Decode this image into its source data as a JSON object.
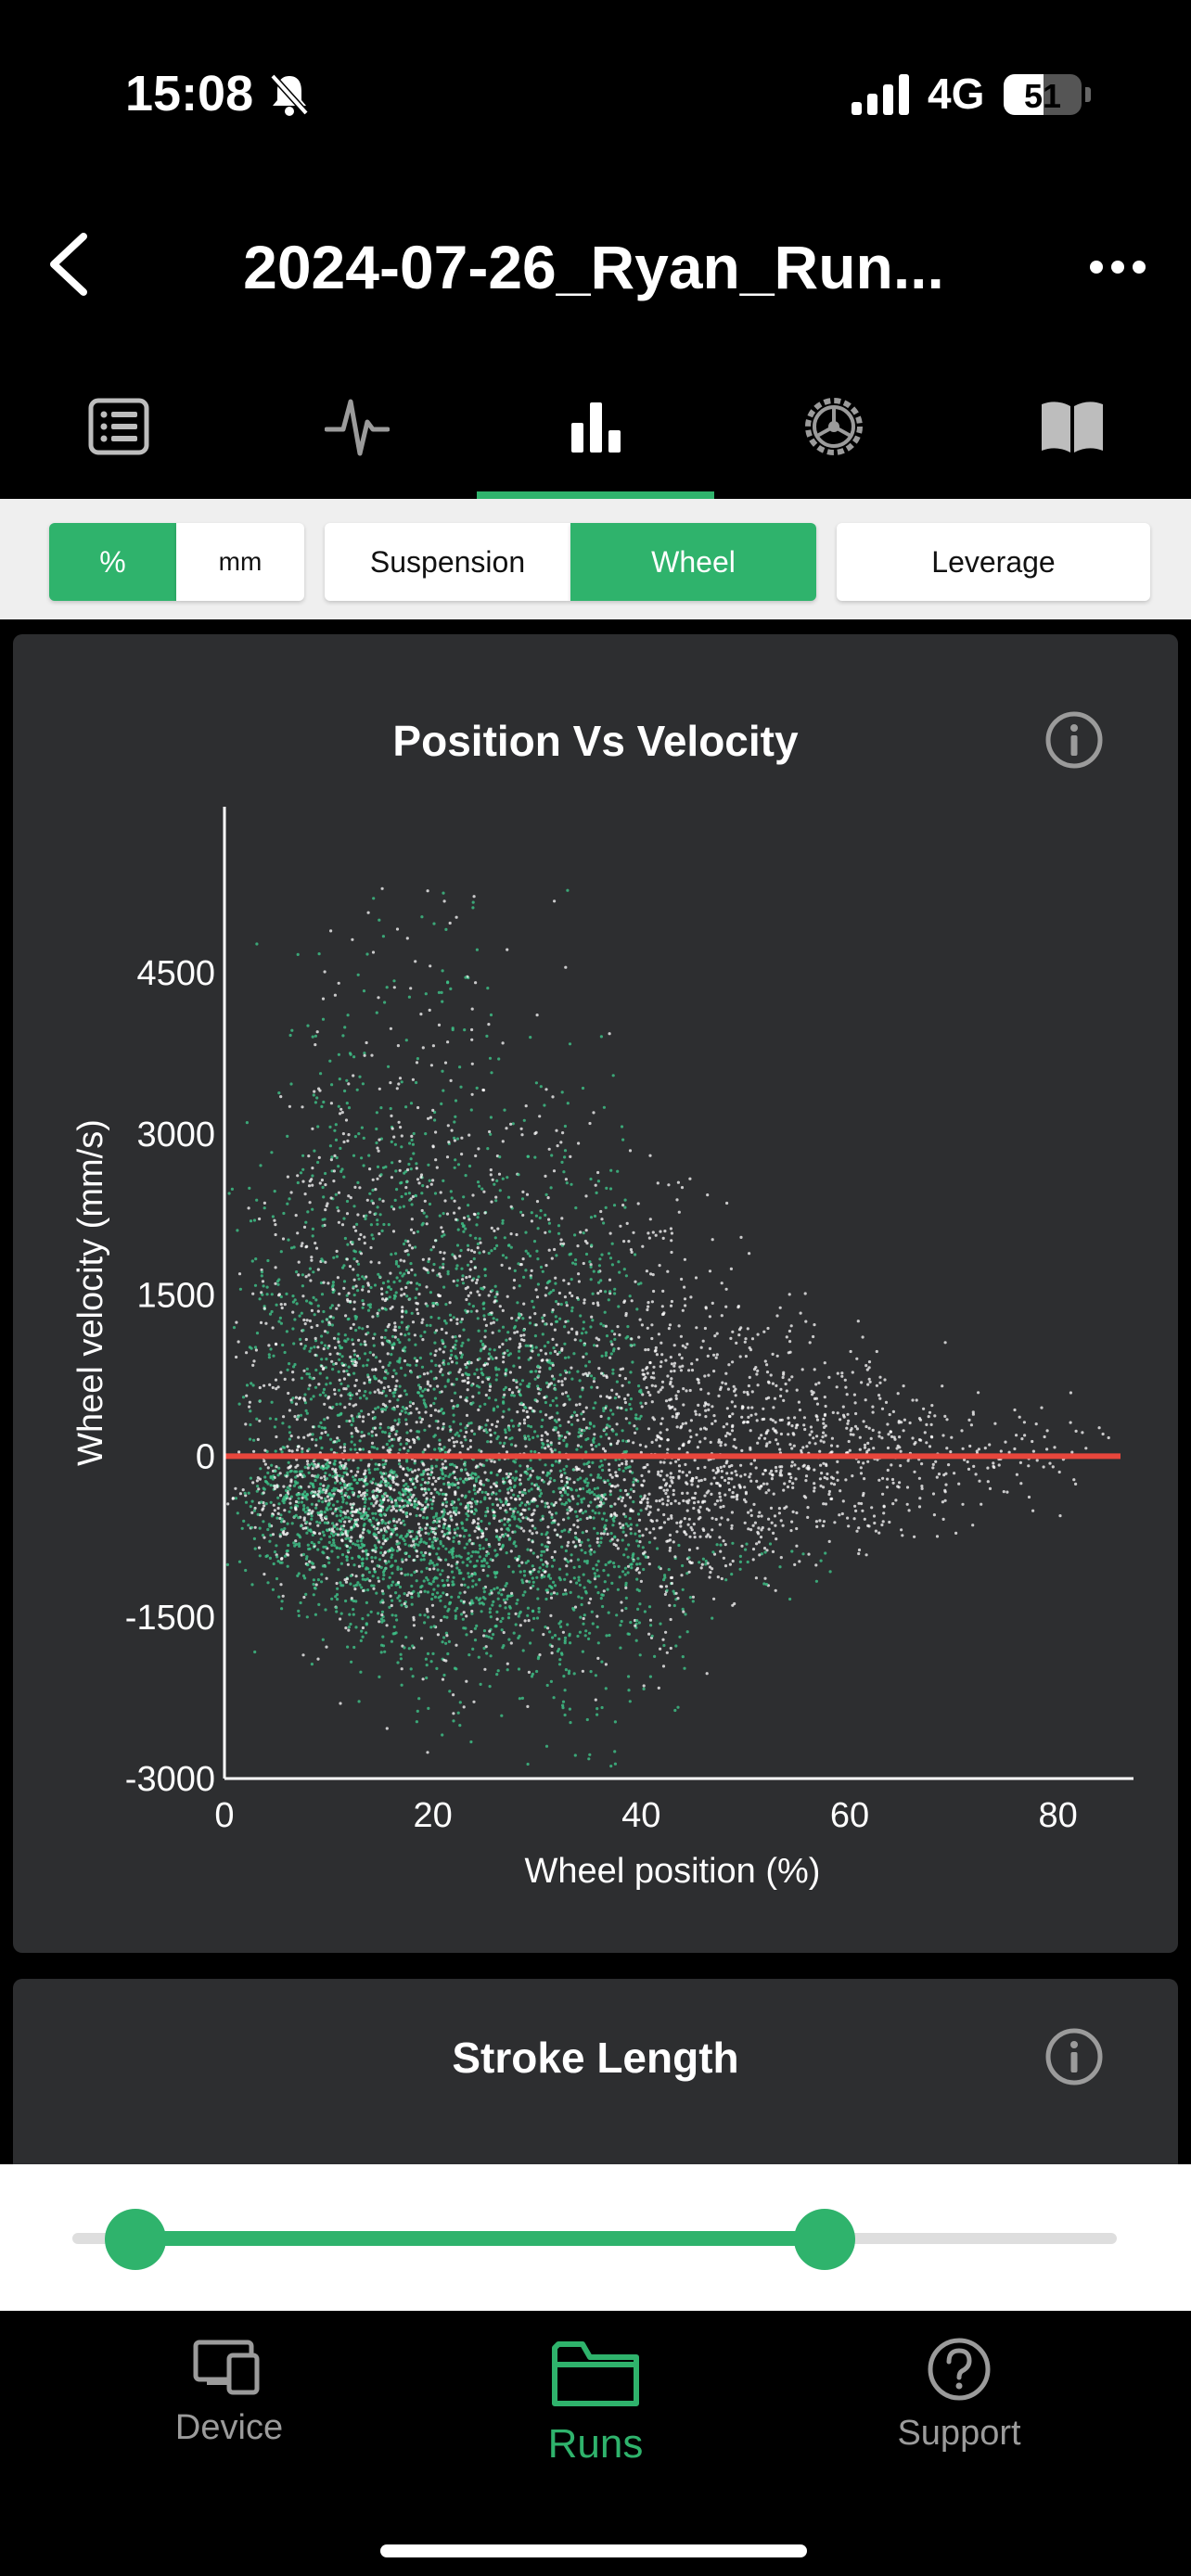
{
  "status_bar": {
    "time": "15:08",
    "network": "4G",
    "battery": "51",
    "battery_level": 0.51
  },
  "header": {
    "title": "2024-07-26_Ryan_Run..."
  },
  "tabs": [
    {
      "icon": "list-icon"
    },
    {
      "icon": "pulse-icon"
    },
    {
      "icon": "bar-chart-icon",
      "active": true
    },
    {
      "icon": "gear-wheel-icon"
    },
    {
      "icon": "book-icon"
    }
  ],
  "toolbar": {
    "unit_percent": "%",
    "unit_mm": "mm",
    "suspension": "Suspension",
    "wheel": "Wheel",
    "leverage": "Leverage"
  },
  "cards": {
    "position_vs_velocity": {
      "title": "Position Vs Velocity"
    },
    "stroke_length": {
      "title": "Stroke Length"
    }
  },
  "chart_data": {
    "type": "scatter",
    "title": "Position Vs Velocity",
    "xlabel": "Wheel position (%)",
    "ylabel": "Wheel velocity (mm/s)",
    "xlim": [
      0,
      86
    ],
    "ylim": [
      -3000,
      5700
    ],
    "x_ticks": [
      "0",
      "20",
      "40",
      "60",
      "80"
    ],
    "y_ticks": [
      "4500",
      "3000",
      "1500",
      "0",
      "-1500",
      "-3000"
    ],
    "reference_line": {
      "y": 0,
      "color": "#e8463c"
    },
    "point_colors": [
      "#ffffff",
      "#3ec48a"
    ]
  },
  "slider": {
    "start": 0.06,
    "end": 0.72
  },
  "bottom_nav": {
    "device": "Device",
    "runs": "Runs",
    "support": "Support"
  }
}
